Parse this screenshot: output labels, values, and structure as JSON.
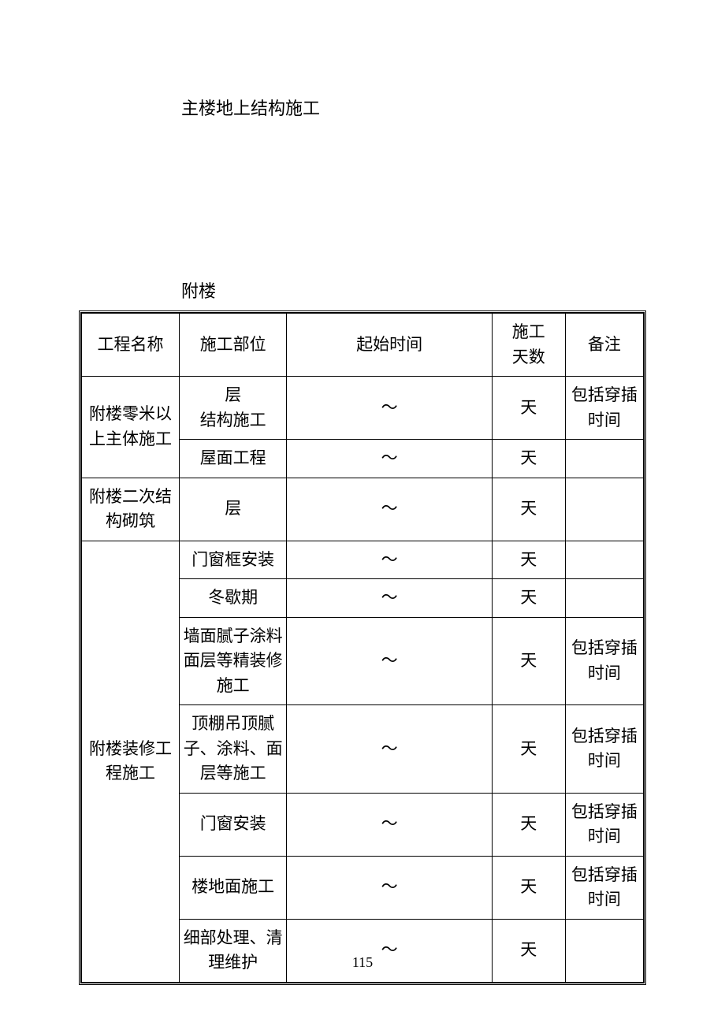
{
  "title": "主楼地上结构施工",
  "subtitle": "附楼",
  "page_number": "115",
  "headers": {
    "col1": "工程名称",
    "col2": "施工部位",
    "col3": "起始时间",
    "col4": "施工\n天数",
    "col5": "备注"
  },
  "rows": [
    {
      "c1": "附楼零米以上主体施工",
      "c1_rowspan": 2,
      "c2": "层\n结构施工",
      "c3": "～",
      "c4": "天",
      "c5": "包括穿插时间"
    },
    {
      "c2": "屋面工程",
      "c3": "～",
      "c4": "天",
      "c5": ""
    },
    {
      "c1": "附楼二次结构砌筑",
      "c1_rowspan": 1,
      "c2": "层",
      "c3": "～",
      "c4": "天",
      "c5": ""
    },
    {
      "c1": "附楼装修工程施工",
      "c1_rowspan": 7,
      "c2": "门窗框安装",
      "c3": "～",
      "c4": "天",
      "c5": ""
    },
    {
      "c2": "冬歇期",
      "c3": "～",
      "c4": "天",
      "c5": ""
    },
    {
      "c2": "墙面腻子涂料面层等精装修施工",
      "c3": "～",
      "c4": "天",
      "c5": "包括穿插时间"
    },
    {
      "c2": "顶棚吊顶腻子、涂料、面层等施工",
      "c3": "～",
      "c4": "天",
      "c5": "包括穿插时间"
    },
    {
      "c2": "门窗安装",
      "c3": "～",
      "c4": "天",
      "c5": "包括穿插时间"
    },
    {
      "c2": "楼地面施工",
      "c3": "～",
      "c4": "天",
      "c5": "包括穿插时间"
    },
    {
      "c2": "细部处理、清理维护",
      "c3": "～",
      "c4": "天",
      "c5": ""
    }
  ]
}
